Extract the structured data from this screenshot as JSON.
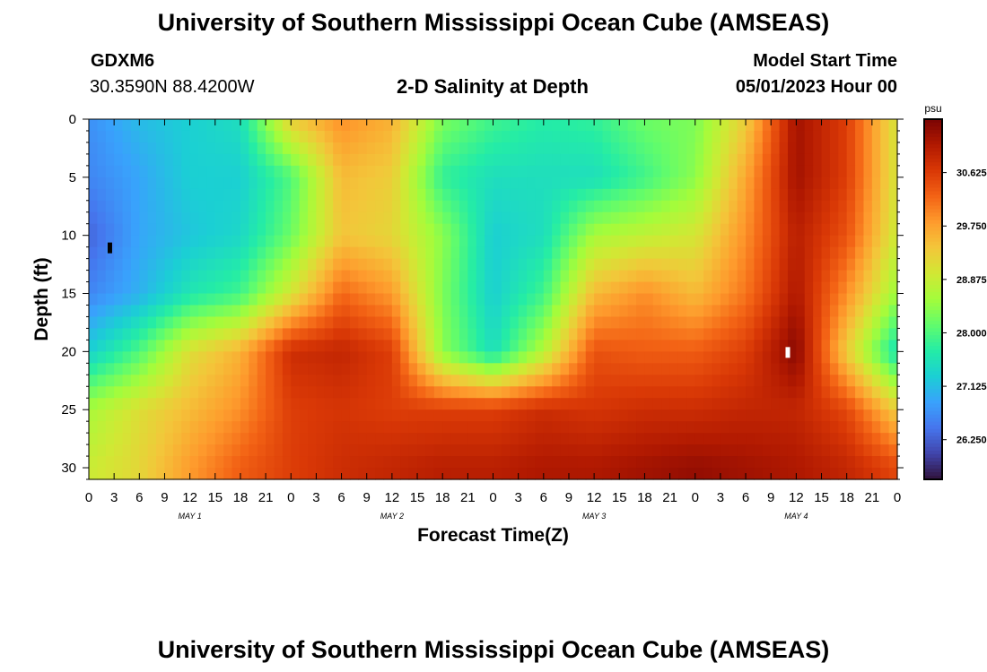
{
  "page": {
    "title": "University of Southern Mississippi Ocean Cube (AMSEAS)",
    "station_id": "GDXM6",
    "coords": "30.3590N  88.4200W",
    "plot_title": "2-D Salinity at Depth",
    "model_start_label": "Model Start Time",
    "model_start_value": "05/01/2023 Hour 00",
    "footer_title": "University of Southern Mississippi Ocean Cube (AMSEAS)"
  },
  "chart_data": {
    "type": "heatmap",
    "title": "2-D Salinity at Depth",
    "xlabel": "Forecast Time(Z)",
    "ylabel": "Depth (ft)",
    "x_ticks": [
      "0",
      "3",
      "6",
      "9",
      "12",
      "15",
      "18",
      "21",
      "0",
      "3",
      "6",
      "9",
      "12",
      "15",
      "18",
      "21",
      "0",
      "3",
      "6",
      "9",
      "12",
      "15",
      "18",
      "21",
      "0",
      "3",
      "6",
      "9",
      "12",
      "15",
      "18",
      "21",
      "0"
    ],
    "x_range_hours": [
      0,
      96
    ],
    "day_labels": [
      {
        "label": "MAY 1",
        "hour": 12
      },
      {
        "label": "MAY 2",
        "hour": 36
      },
      {
        "label": "MAY 3",
        "hour": 60
      },
      {
        "label": "MAY 4",
        "hour": 84
      }
    ],
    "y_ticks": [
      "0",
      "5",
      "10",
      "15",
      "20",
      "25",
      "30"
    ],
    "y_range_ft": [
      0,
      31
    ],
    "colorbar": {
      "unit": "psu",
      "range": [
        25.6,
        31.5
      ],
      "tick_values": [
        26.25,
        27.125,
        28.0,
        28.875,
        29.75,
        30.625
      ],
      "tick_labels": [
        "26.250",
        "27.125",
        "28.000",
        "28.875",
        "29.750",
        "30.625"
      ],
      "colormap": [
        "#30123b",
        "#4145ab",
        "#4675ed",
        "#39a2fc",
        "#1bcfd4",
        "#24eca6",
        "#61fc6c",
        "#a4fc3b",
        "#d1e834",
        "#f3c63a",
        "#fe9b2d",
        "#f36315",
        "#d93806",
        "#b11901",
        "#7a0403"
      ]
    },
    "salinity_psu": {
      "hours": [
        0,
        6,
        12,
        18,
        24,
        30,
        36,
        42,
        48,
        54,
        60,
        66,
        72,
        78,
        84,
        90,
        96
      ],
      "depths_ft": [
        0,
        5,
        10,
        15,
        20,
        25,
        30
      ],
      "values": [
        [
          26.7,
          27.1,
          27.3,
          27.5,
          29.3,
          29.9,
          29.6,
          28.3,
          27.9,
          27.7,
          27.8,
          28.2,
          28.3,
          29.3,
          31.2,
          30.6,
          29.0
        ],
        [
          26.6,
          26.9,
          27.3,
          27.3,
          28.0,
          29.5,
          29.3,
          27.8,
          27.5,
          27.5,
          27.5,
          27.9,
          28.4,
          29.7,
          31.2,
          30.6,
          29.0
        ],
        [
          26.3,
          26.9,
          27.2,
          27.4,
          28.2,
          29.4,
          29.2,
          28.4,
          27.3,
          27.5,
          28.6,
          28.8,
          29.0,
          29.9,
          31.0,
          30.4,
          28.9
        ],
        [
          26.6,
          27.0,
          27.6,
          27.9,
          29.0,
          30.2,
          29.8,
          28.3,
          27.3,
          27.9,
          29.5,
          29.9,
          29.5,
          30.1,
          31.1,
          29.9,
          28.5
        ],
        [
          27.3,
          28.0,
          29.1,
          29.6,
          30.8,
          30.9,
          30.6,
          28.4,
          27.5,
          28.7,
          30.4,
          30.3,
          30.3,
          30.6,
          31.4,
          29.3,
          27.5
        ],
        [
          28.6,
          29.1,
          29.5,
          29.9,
          30.6,
          30.7,
          30.6,
          30.6,
          30.6,
          30.8,
          30.7,
          30.8,
          30.8,
          30.9,
          30.9,
          30.5,
          29.3
        ],
        [
          28.9,
          29.2,
          29.8,
          30.3,
          30.6,
          30.8,
          30.9,
          31.0,
          31.0,
          31.1,
          31.1,
          31.2,
          31.3,
          31.2,
          31.1,
          30.9,
          30.5
        ]
      ]
    }
  }
}
